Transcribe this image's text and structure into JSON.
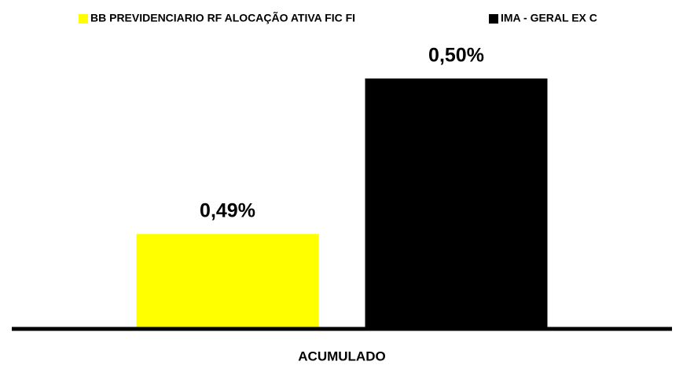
{
  "chart_data": {
    "type": "bar",
    "categories": [
      "ACUMULADO"
    ],
    "series": [
      {
        "name": "BB PREVIDENCIARIO RF ALOCAÇÃO ATIVA FIC FI",
        "color": "#ffff00",
        "values": [
          0.49
        ],
        "value_labels": [
          "0,49%"
        ]
      },
      {
        "name": "IMA - GERAL EX C",
        "color": "#000000",
        "values": [
          0.5
        ],
        "value_labels": [
          "0,50%"
        ]
      }
    ],
    "ylim": [
      0.484,
      0.5
    ],
    "legend": "top"
  }
}
